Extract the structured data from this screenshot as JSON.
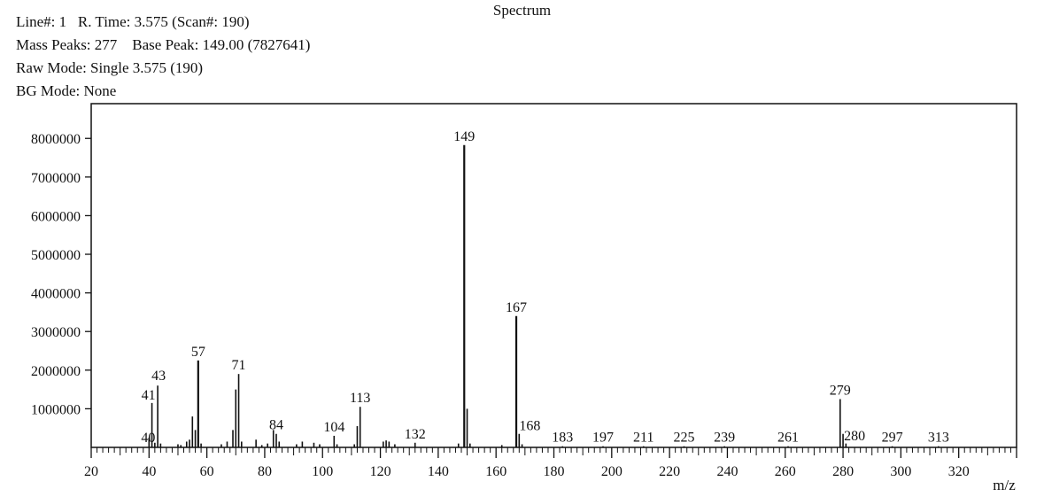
{
  "title": "Spectrum",
  "info": {
    "line1": "Line#: 1   R. Time: 3.575 (Scan#: 190)",
    "line2": "Mass Peaks: 277    Base Peak: 149.00 (7827641)",
    "line3": "Raw Mode: Single 3.575 (190)",
    "line4": "BG Mode: None"
  },
  "chart_data": {
    "type": "bar",
    "xlabel": "m/z",
    "ylabel": "",
    "xlim": [
      20,
      340
    ],
    "ylim": [
      0,
      8900000
    ],
    "x_ticks": [
      20,
      40,
      60,
      80,
      100,
      120,
      140,
      160,
      180,
      200,
      220,
      240,
      260,
      280,
      300,
      320
    ],
    "y_ticks": [
      1000000,
      2000000,
      3000000,
      4000000,
      5000000,
      6000000,
      7000000,
      8000000
    ],
    "y_tick_labels": [
      "1000000",
      "2000000",
      "3000000",
      "4000000",
      "5000000",
      "6000000",
      "7000000",
      "8000000"
    ],
    "grid": false,
    "peaks": [
      {
        "x": 40,
        "y": 250000,
        "label": "40"
      },
      {
        "x": 41,
        "y": 1150000,
        "label": "41"
      },
      {
        "x": 42,
        "y": 120000,
        "label": ""
      },
      {
        "x": 43,
        "y": 1600000,
        "label": "43"
      },
      {
        "x": 44,
        "y": 100000,
        "label": ""
      },
      {
        "x": 50,
        "y": 80000,
        "label": ""
      },
      {
        "x": 51,
        "y": 60000,
        "label": ""
      },
      {
        "x": 53,
        "y": 150000,
        "label": ""
      },
      {
        "x": 54,
        "y": 200000,
        "label": ""
      },
      {
        "x": 55,
        "y": 800000,
        "label": ""
      },
      {
        "x": 56,
        "y": 450000,
        "label": ""
      },
      {
        "x": 57,
        "y": 2250000,
        "label": "57"
      },
      {
        "x": 58,
        "y": 100000,
        "label": ""
      },
      {
        "x": 65,
        "y": 80000,
        "label": ""
      },
      {
        "x": 67,
        "y": 150000,
        "label": ""
      },
      {
        "x": 69,
        "y": 450000,
        "label": ""
      },
      {
        "x": 70,
        "y": 1500000,
        "label": ""
      },
      {
        "x": 71,
        "y": 1900000,
        "label": "71"
      },
      {
        "x": 72,
        "y": 150000,
        "label": ""
      },
      {
        "x": 77,
        "y": 200000,
        "label": ""
      },
      {
        "x": 79,
        "y": 60000,
        "label": ""
      },
      {
        "x": 81,
        "y": 100000,
        "label": ""
      },
      {
        "x": 83,
        "y": 450000,
        "label": ""
      },
      {
        "x": 84,
        "y": 350000,
        "label": "84"
      },
      {
        "x": 85,
        "y": 150000,
        "label": ""
      },
      {
        "x": 91,
        "y": 80000,
        "label": ""
      },
      {
        "x": 93,
        "y": 150000,
        "label": ""
      },
      {
        "x": 97,
        "y": 120000,
        "label": ""
      },
      {
        "x": 99,
        "y": 80000,
        "label": ""
      },
      {
        "x": 104,
        "y": 300000,
        "label": "104"
      },
      {
        "x": 105,
        "y": 80000,
        "label": ""
      },
      {
        "x": 111,
        "y": 80000,
        "label": ""
      },
      {
        "x": 112,
        "y": 550000,
        "label": ""
      },
      {
        "x": 113,
        "y": 1050000,
        "label": "113"
      },
      {
        "x": 121,
        "y": 150000,
        "label": ""
      },
      {
        "x": 122,
        "y": 180000,
        "label": ""
      },
      {
        "x": 123,
        "y": 150000,
        "label": ""
      },
      {
        "x": 125,
        "y": 80000,
        "label": ""
      },
      {
        "x": 132,
        "y": 120000,
        "label": "132"
      },
      {
        "x": 147,
        "y": 100000,
        "label": ""
      },
      {
        "x": 149,
        "y": 7827641,
        "label": "149"
      },
      {
        "x": 150,
        "y": 1000000,
        "label": ""
      },
      {
        "x": 151,
        "y": 100000,
        "label": ""
      },
      {
        "x": 162,
        "y": 60000,
        "label": ""
      },
      {
        "x": 167,
        "y": 3400000,
        "label": "167"
      },
      {
        "x": 168,
        "y": 350000,
        "label": "168"
      },
      {
        "x": 169,
        "y": 80000,
        "label": ""
      },
      {
        "x": 183,
        "y": 30000,
        "label": "183"
      },
      {
        "x": 197,
        "y": 30000,
        "label": "197"
      },
      {
        "x": 211,
        "y": 30000,
        "label": "211"
      },
      {
        "x": 225,
        "y": 30000,
        "label": "225"
      },
      {
        "x": 239,
        "y": 30000,
        "label": "239"
      },
      {
        "x": 261,
        "y": 30000,
        "label": "261"
      },
      {
        "x": 279,
        "y": 1250000,
        "label": "279"
      },
      {
        "x": 280,
        "y": 350000,
        "label": "280"
      },
      {
        "x": 281,
        "y": 100000,
        "label": ""
      },
      {
        "x": 297,
        "y": 30000,
        "label": "297"
      },
      {
        "x": 313,
        "y": 30000,
        "label": "313"
      }
    ]
  }
}
